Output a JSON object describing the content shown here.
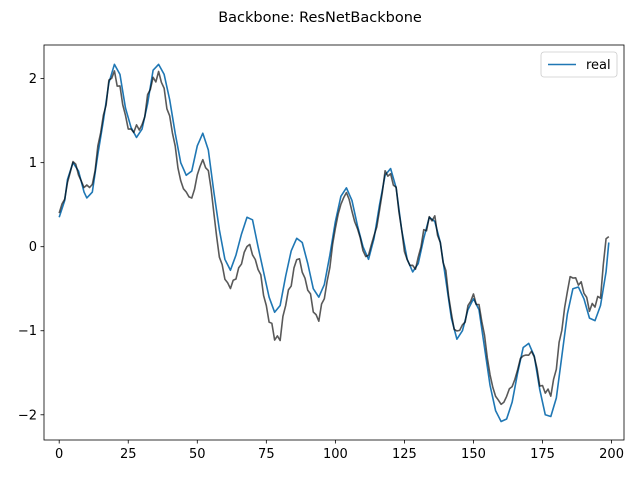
{
  "chart_data": {
    "type": "line",
    "title": "Backbone: ResNetBackbone",
    "xlabel": "",
    "ylabel": "",
    "xlim": [
      -5.5,
      204.5
    ],
    "ylim": [
      -2.3,
      2.4
    ],
    "xticks": [
      0,
      25,
      50,
      75,
      100,
      125,
      150,
      175,
      200
    ],
    "yticks": [
      -2,
      -1,
      0,
      1,
      2
    ],
    "grid": false,
    "legend_position": "top-right",
    "series": [
      {
        "name": "real",
        "color": "#1f77b4",
        "opacity": 1.0,
        "keyframes": [
          [
            0,
            0.35
          ],
          [
            2,
            0.55
          ],
          [
            3,
            0.8
          ],
          [
            5,
            1.0
          ],
          [
            7,
            0.9
          ],
          [
            9,
            0.65
          ],
          [
            10,
            0.58
          ],
          [
            12,
            0.65
          ],
          [
            14,
            1.1
          ],
          [
            16,
            1.5
          ],
          [
            18,
            1.95
          ],
          [
            20,
            2.17
          ],
          [
            22,
            2.05
          ],
          [
            24,
            1.65
          ],
          [
            26,
            1.42
          ],
          [
            28,
            1.3
          ],
          [
            30,
            1.4
          ],
          [
            32,
            1.7
          ],
          [
            34,
            2.1
          ],
          [
            36,
            2.17
          ],
          [
            38,
            2.05
          ],
          [
            40,
            1.75
          ],
          [
            42,
            1.35
          ],
          [
            44,
            1.0
          ],
          [
            46,
            0.85
          ],
          [
            48,
            0.9
          ],
          [
            50,
            1.2
          ],
          [
            52,
            1.35
          ],
          [
            54,
            1.15
          ],
          [
            56,
            0.65
          ],
          [
            58,
            0.2
          ],
          [
            60,
            -0.15
          ],
          [
            62,
            -0.28
          ],
          [
            64,
            -0.1
          ],
          [
            66,
            0.15
          ],
          [
            68,
            0.35
          ],
          [
            70,
            0.32
          ],
          [
            72,
            0.0
          ],
          [
            74,
            -0.3
          ],
          [
            76,
            -0.6
          ],
          [
            78,
            -0.78
          ],
          [
            80,
            -0.7
          ],
          [
            82,
            -0.35
          ],
          [
            84,
            -0.05
          ],
          [
            86,
            0.1
          ],
          [
            88,
            0.05
          ],
          [
            90,
            -0.2
          ],
          [
            92,
            -0.5
          ],
          [
            94,
            -0.6
          ],
          [
            96,
            -0.45
          ],
          [
            98,
            -0.1
          ],
          [
            100,
            0.3
          ],
          [
            102,
            0.6
          ],
          [
            104,
            0.7
          ],
          [
            106,
            0.55
          ],
          [
            108,
            0.25
          ],
          [
            110,
            0.0
          ],
          [
            112,
            -0.15
          ],
          [
            114,
            0.1
          ],
          [
            116,
            0.5
          ],
          [
            118,
            0.85
          ],
          [
            120,
            0.93
          ],
          [
            122,
            0.7
          ],
          [
            124,
            0.2
          ],
          [
            126,
            -0.15
          ],
          [
            128,
            -0.3
          ],
          [
            130,
            -0.2
          ],
          [
            132,
            0.1
          ],
          [
            134,
            0.35
          ],
          [
            136,
            0.3
          ],
          [
            138,
            0.05
          ],
          [
            140,
            -0.4
          ],
          [
            142,
            -0.85
          ],
          [
            144,
            -1.1
          ],
          [
            146,
            -1.0
          ],
          [
            148,
            -0.75
          ],
          [
            150,
            -0.62
          ],
          [
            152,
            -0.75
          ],
          [
            154,
            -1.2
          ],
          [
            156,
            -1.65
          ],
          [
            158,
            -1.95
          ],
          [
            160,
            -2.08
          ],
          [
            162,
            -2.05
          ],
          [
            164,
            -1.85
          ],
          [
            166,
            -1.5
          ],
          [
            168,
            -1.2
          ],
          [
            170,
            -1.15
          ],
          [
            172,
            -1.3
          ],
          [
            174,
            -1.7
          ],
          [
            176,
            -2.0
          ],
          [
            178,
            -2.02
          ],
          [
            180,
            -1.8
          ],
          [
            182,
            -1.3
          ],
          [
            184,
            -0.8
          ],
          [
            186,
            -0.5
          ],
          [
            188,
            -0.48
          ],
          [
            190,
            -0.62
          ],
          [
            192,
            -0.85
          ],
          [
            194,
            -0.88
          ],
          [
            196,
            -0.7
          ],
          [
            198,
            -0.3
          ],
          [
            199,
            0.05
          ]
        ],
        "wiggle": 0.0
      },
      {
        "name": "",
        "color": "#000000",
        "opacity": 0.65,
        "keyframes": [
          [
            0,
            0.4
          ],
          [
            2,
            0.55
          ],
          [
            3,
            0.8
          ],
          [
            5,
            1.0
          ],
          [
            7,
            0.88
          ],
          [
            9,
            0.72
          ],
          [
            10,
            0.68
          ],
          [
            12,
            0.75
          ],
          [
            14,
            1.15
          ],
          [
            16,
            1.55
          ],
          [
            18,
            1.95
          ],
          [
            20,
            2.05
          ],
          [
            22,
            1.9
          ],
          [
            24,
            1.5
          ],
          [
            26,
            1.4
          ],
          [
            28,
            1.38
          ],
          [
            30,
            1.45
          ],
          [
            32,
            1.75
          ],
          [
            34,
            2.0
          ],
          [
            36,
            2.05
          ],
          [
            38,
            1.85
          ],
          [
            40,
            1.55
          ],
          [
            42,
            1.15
          ],
          [
            44,
            0.8
          ],
          [
            46,
            0.6
          ],
          [
            48,
            0.6
          ],
          [
            50,
            0.82
          ],
          [
            52,
            1.05
          ],
          [
            54,
            0.9
          ],
          [
            56,
            0.4
          ],
          [
            58,
            -0.1
          ],
          [
            60,
            -0.4
          ],
          [
            62,
            -0.45
          ],
          [
            64,
            -0.4
          ],
          [
            66,
            -0.15
          ],
          [
            68,
            0.0
          ],
          [
            70,
            -0.05
          ],
          [
            72,
            -0.25
          ],
          [
            74,
            -0.55
          ],
          [
            76,
            -0.85
          ],
          [
            78,
            -1.1
          ],
          [
            80,
            -1.05
          ],
          [
            82,
            -0.7
          ],
          [
            84,
            -0.4
          ],
          [
            86,
            -0.15
          ],
          [
            88,
            -0.25
          ],
          [
            90,
            -0.5
          ],
          [
            92,
            -0.75
          ],
          [
            94,
            -0.85
          ],
          [
            96,
            -0.62
          ],
          [
            98,
            -0.2
          ],
          [
            100,
            0.2
          ],
          [
            102,
            0.55
          ],
          [
            104,
            0.62
          ],
          [
            106,
            0.45
          ],
          [
            108,
            0.2
          ],
          [
            110,
            -0.05
          ],
          [
            112,
            -0.1
          ],
          [
            114,
            0.1
          ],
          [
            116,
            0.45
          ],
          [
            118,
            0.85
          ],
          [
            120,
            0.88
          ],
          [
            122,
            0.65
          ],
          [
            124,
            0.2
          ],
          [
            126,
            -0.2
          ],
          [
            128,
            -0.25
          ],
          [
            130,
            -0.15
          ],
          [
            132,
            0.15
          ],
          [
            134,
            0.35
          ],
          [
            136,
            0.3
          ],
          [
            138,
            0.05
          ],
          [
            140,
            -0.35
          ],
          [
            142,
            -0.8
          ],
          [
            144,
            -1.05
          ],
          [
            146,
            -0.95
          ],
          [
            148,
            -0.72
          ],
          [
            150,
            -0.6
          ],
          [
            152,
            -0.68
          ],
          [
            154,
            -1.1
          ],
          [
            156,
            -1.5
          ],
          [
            158,
            -1.82
          ],
          [
            160,
            -1.85
          ],
          [
            162,
            -1.8
          ],
          [
            164,
            -1.65
          ],
          [
            166,
            -1.45
          ],
          [
            168,
            -1.3
          ],
          [
            170,
            -1.25
          ],
          [
            172,
            -1.32
          ],
          [
            174,
            -1.6
          ],
          [
            176,
            -1.75
          ],
          [
            178,
            -1.72
          ],
          [
            180,
            -1.45
          ],
          [
            182,
            -0.95
          ],
          [
            184,
            -0.5
          ],
          [
            186,
            -0.35
          ],
          [
            188,
            -0.4
          ],
          [
            190,
            -0.55
          ],
          [
            192,
            -0.7
          ],
          [
            194,
            -0.72
          ],
          [
            196,
            -0.55
          ],
          [
            198,
            0.1
          ],
          [
            199,
            0.12
          ]
        ],
        "wiggle": 0.07
      }
    ]
  }
}
